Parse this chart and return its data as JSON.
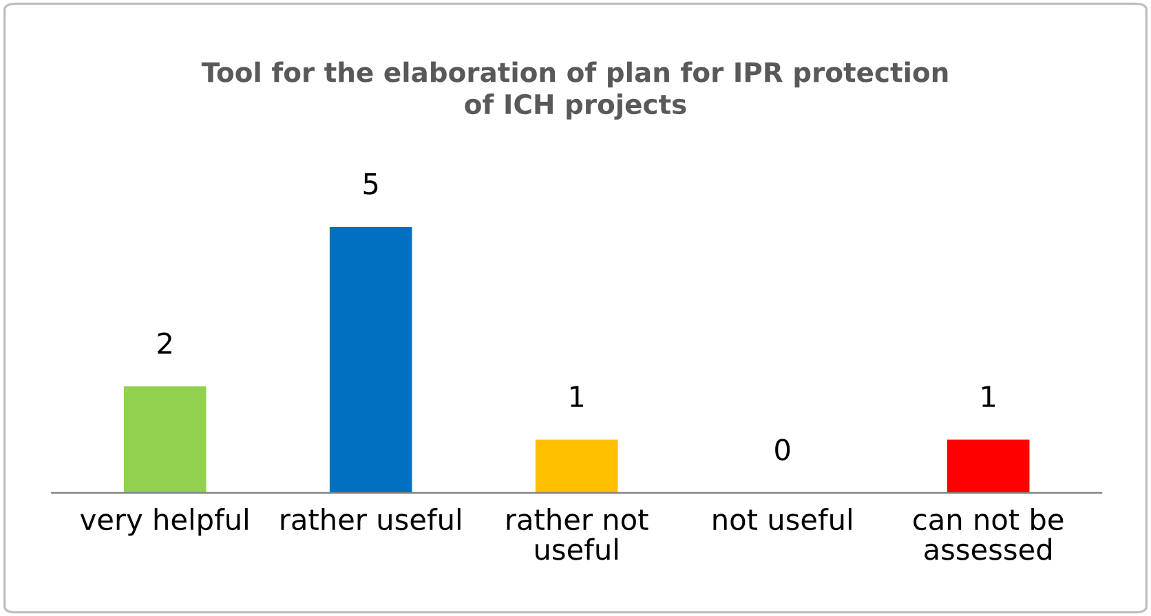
{
  "chart_data": {
    "type": "bar",
    "title": "Tool for the elaboration of plan for IPR protection\nof ICH projects",
    "categories": [
      "very helpful",
      "rather useful",
      "rather not\nuseful",
      "not useful",
      "can not be\nassessed"
    ],
    "values": [
      2,
      5,
      1,
      0,
      1
    ],
    "colors": [
      "#92d050",
      "#0070c0",
      "#ffc000",
      "#a5a5a5",
      "#ff0000"
    ],
    "data_labels": true,
    "grid": false,
    "legend": false
  }
}
